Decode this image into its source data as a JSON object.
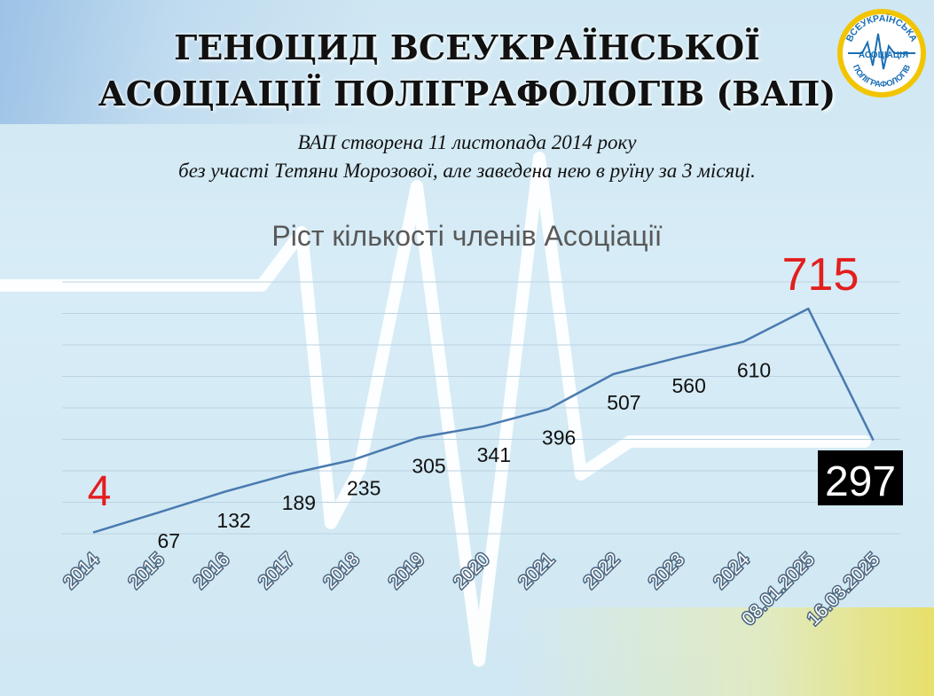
{
  "title_line1": "ГЕНОЦИД ВСЕУКРАЇНСЬКОЇ",
  "title_line2": "АСОЦІАЦІЇ ПОЛІГРАФОЛОГІВ (ВАП)",
  "subtitle_line1": "ВАП створена  11 листопада 2014 року",
  "subtitle_line2": "без участі Тетяни Морозової, але заведена нею в руїну за 3 місяці.",
  "logo": {
    "text_top": "ВСЕУКРАЇНСЬКА",
    "text_mid": "АСОЦІАЦІЯ",
    "text_bottom": "ПОЛІГРАФОЛОГІВ",
    "colors": [
      "#1a6fb5",
      "#f2c500"
    ]
  },
  "chart_data": {
    "type": "line",
    "title": "Ріст кількості членів Асоціації",
    "categories": [
      "2014",
      "2015",
      "2016",
      "2017",
      "2018",
      "2019",
      "2020",
      "2021",
      "2022",
      "2023",
      "2024",
      "08.01.2025",
      "16.03.2025"
    ],
    "values": [
      4,
      67,
      132,
      189,
      235,
      305,
      341,
      396,
      507,
      560,
      610,
      715,
      297
    ],
    "ylim": [
      0,
      800
    ],
    "grid": true,
    "line_color": "#4a7ab0",
    "highlight_color": "#e31e1e",
    "labels": [
      {
        "text": "4",
        "color": "#e31e1e"
      },
      {
        "text": "67"
      },
      {
        "text": "132"
      },
      {
        "text": "189"
      },
      {
        "text": "235"
      },
      {
        "text": "305"
      },
      {
        "text": "341"
      },
      {
        "text": "396"
      },
      {
        "text": "507"
      },
      {
        "text": "560"
      },
      {
        "text": "610"
      },
      {
        "text": "715",
        "color": "#e31e1e"
      },
      {
        "text": "297",
        "color": "#ffffff",
        "background": "#000000"
      }
    ]
  }
}
